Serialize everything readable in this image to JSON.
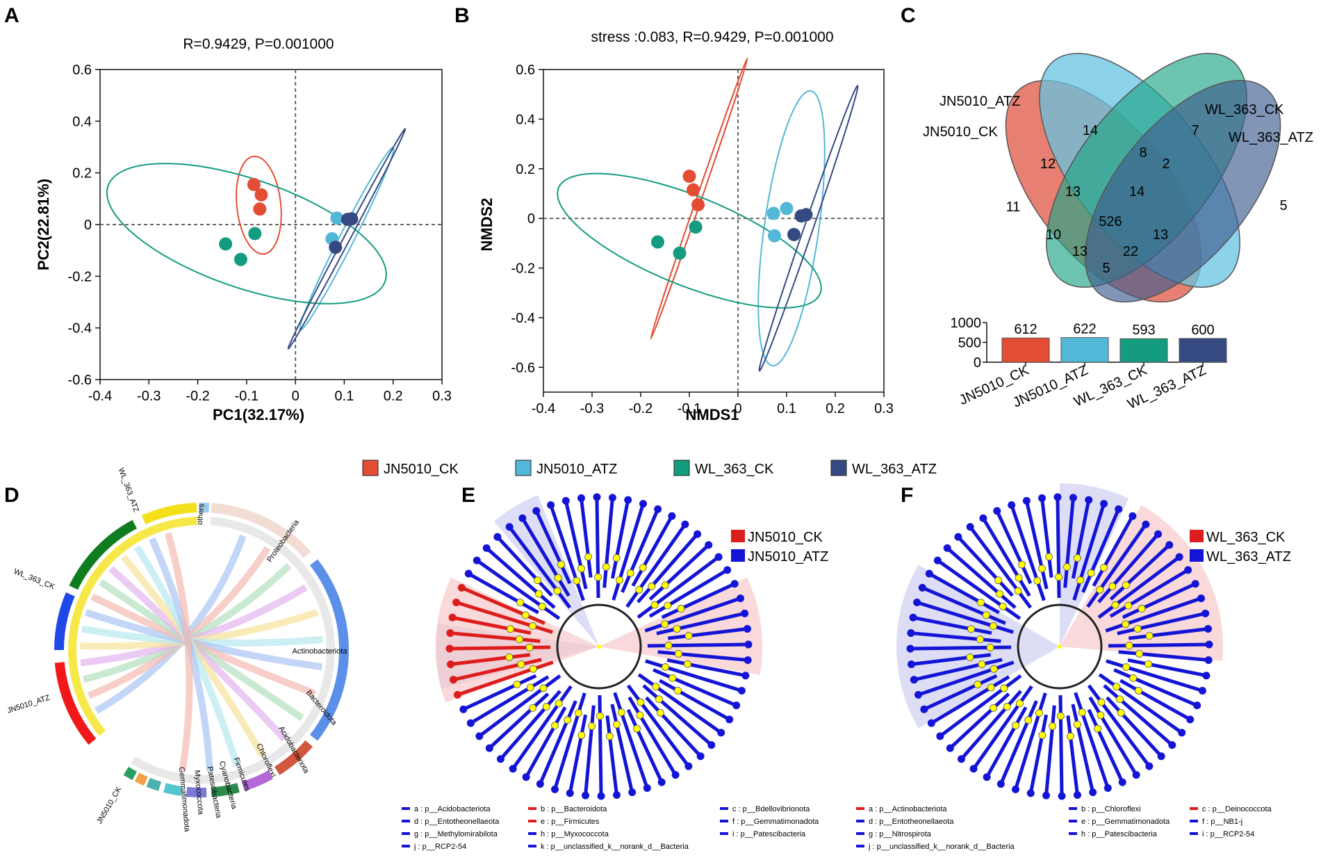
{
  "panels": {
    "A": "A",
    "B": "B",
    "C": "C",
    "D": "D",
    "E": "E",
    "F": "F"
  },
  "colors": {
    "JN5010_CK": "#e34d34",
    "JN5010_ATZ": "#53b7d8",
    "WL_363_CK": "#139c80",
    "WL_363_ATZ": "#354a82",
    "lefse_red": "#dd1c1c",
    "lefse_blue": "#1414d6",
    "node_yellow": "#ffff00"
  },
  "legend": {
    "items": [
      {
        "label": "JN5010_CK",
        "color": "#e34d34"
      },
      {
        "label": "JN5010_ATZ",
        "color": "#53b7d8"
      },
      {
        "label": "WL_363_CK",
        "color": "#139c80"
      },
      {
        "label": "WL_363_ATZ",
        "color": "#354a82"
      }
    ]
  },
  "chart_data": [
    {
      "panel": "A",
      "type": "scatter",
      "title": "R=0.9429, P=0.001000",
      "xlabel": "PC1(32.17%)",
      "ylabel": "PC2(22.81%)",
      "xlim": [
        -0.4,
        0.3
      ],
      "ylim": [
        -0.6,
        0.6
      ],
      "xticks": [
        "-0.4",
        "-0.3",
        "-0.2",
        "-0.1",
        "0",
        "0.1",
        "0.2",
        "0.3"
      ],
      "yticks": [
        "0.6",
        "0.4",
        "0.2",
        "0",
        "-0.2",
        "-0.4",
        "-0.6"
      ],
      "xtick_values": [
        -0.4,
        -0.3,
        -0.2,
        -0.1,
        0,
        0.1,
        0.2,
        0.3
      ],
      "ytick_values": [
        0.6,
        0.4,
        0.2,
        0,
        -0.2,
        -0.4,
        -0.6
      ],
      "series": [
        {
          "name": "JN5010_CK",
          "points": [
            [
              -0.085,
              0.155
            ],
            [
              -0.07,
              0.115
            ],
            [
              -0.073,
              0.06
            ]
          ],
          "ellipse": {
            "cx": -0.075,
            "cy": 0.075,
            "rx": 0.045,
            "ry": 0.19,
            "angle": -6
          }
        },
        {
          "name": "JN5010_ATZ",
          "points": [
            [
              0.085,
              0.025
            ],
            [
              0.075,
              -0.055
            ]
          ],
          "ellipse": {
            "cx": 0.105,
            "cy": -0.055,
            "rx": 0.21,
            "ry": 0.028,
            "angle": -63
          }
        },
        {
          "name": "WL_363_CK",
          "points": [
            [
              -0.143,
              -0.075
            ],
            [
              -0.112,
              -0.135
            ],
            [
              -0.083,
              -0.035
            ]
          ],
          "ellipse": {
            "cx": -0.1,
            "cy": -0.035,
            "rx": 0.3,
            "ry": 0.21,
            "angle": 19
          }
        },
        {
          "name": "WL_363_ATZ",
          "points": [
            [
              0.107,
              0.02
            ],
            [
              0.115,
              0.022
            ],
            [
              0.082,
              -0.088
            ]
          ],
          "ellipse": {
            "cx": 0.105,
            "cy": -0.055,
            "rx": 0.255,
            "ry": 0.012,
            "angle": -62
          }
        }
      ]
    },
    {
      "panel": "B",
      "type": "scatter",
      "title": "stress :0.083, R=0.9429, P=0.001000",
      "xlabel": "NMDS1",
      "ylabel": "NMDS2",
      "xlim": [
        -0.4,
        0.3
      ],
      "ylim": [
        -0.7,
        0.6
      ],
      "xticks": [
        "-0.4",
        "-0.3",
        "-0.2",
        "-0.1",
        "0",
        "0.1",
        "0.2",
        "0.3"
      ],
      "yticks": [
        "0.6",
        "0.4",
        "0.2",
        "0",
        "-0.2",
        "-0.4",
        "-0.6"
      ],
      "xtick_values": [
        -0.4,
        -0.3,
        -0.2,
        -0.1,
        0,
        0.1,
        0.2,
        0.3
      ],
      "ytick_values": [
        0.6,
        0.4,
        0.2,
        0,
        -0.2,
        -0.4,
        -0.6
      ],
      "series": [
        {
          "name": "JN5010_CK",
          "points": [
            [
              -0.1,
              0.17
            ],
            [
              -0.092,
              0.115
            ],
            [
              -0.082,
              0.055
            ]
          ],
          "ellipse": {
            "cx": -0.08,
            "cy": 0.08,
            "rx": 0.305,
            "ry": 0.01,
            "angle": -71
          }
        },
        {
          "name": "JN5010_ATZ",
          "points": [
            [
              0.073,
              0.02
            ],
            [
              0.1,
              0.04
            ],
            [
              0.075,
              -0.07
            ]
          ],
          "ellipse": {
            "cx": 0.11,
            "cy": -0.04,
            "rx": 0.285,
            "ry": 0.11,
            "angle": -82
          }
        },
        {
          "name": "WL_363_CK",
          "points": [
            [
              -0.165,
              -0.095
            ],
            [
              -0.12,
              -0.14
            ],
            [
              -0.087,
              -0.035
            ]
          ],
          "ellipse": {
            "cx": -0.1,
            "cy": -0.09,
            "rx": 0.29,
            "ry": 0.18,
            "angle": 22
          }
        },
        {
          "name": "WL_363_ATZ",
          "points": [
            [
              0.13,
              0.01
            ],
            [
              0.14,
              0.015
            ],
            [
              0.115,
              -0.065
            ]
          ],
          "ellipse": {
            "cx": 0.145,
            "cy": -0.04,
            "rx": 0.31,
            "ry": 0.018,
            "angle": -71
          }
        }
      ]
    },
    {
      "panel": "C",
      "type": "bar",
      "title": "",
      "categories": [
        "JN5010_CK",
        "JN5010_ATZ",
        "WL_363_CK",
        "WL_363_ATZ"
      ],
      "values": [
        612,
        622,
        593,
        600
      ],
      "ylim": [
        0,
        1000
      ],
      "yticks": [
        "1000",
        "500",
        "0"
      ],
      "ytick_values": [
        1000,
        500,
        0
      ],
      "venn": {
        "sets": [
          "JN5010_CK",
          "JN5010_ATZ",
          "WL_363_CK",
          "WL_363_ATZ"
        ],
        "region_counts": [
          "11",
          "14",
          "7",
          "5",
          "12",
          "8",
          "2",
          "13",
          "14",
          "526",
          "10",
          "13",
          "22",
          "13",
          "5"
        ]
      }
    },
    {
      "panel": "D",
      "type": "chord",
      "samples": [
        "WL_363_ATZ",
        "WL_363_CK",
        "JN5010_ATZ",
        "JN5010_CK"
      ],
      "phyla": [
        "Proteobacteria",
        "Actinobacteriota",
        "Bacteroidota",
        "Acidobacteriota",
        "Chloroflexi",
        "Firmicutes",
        "Cyanobacteria",
        "Patescibacteria",
        "Myxococcota",
        "Gemmatimonadota",
        "others"
      ]
    },
    {
      "panel": "E",
      "type": "cladogram",
      "groups": [
        "JN5010_CK",
        "JN5010_ATZ"
      ],
      "key": [
        {
          "text": "a : p__Acidobacteriota",
          "group": "JN5010_ATZ"
        },
        {
          "text": "d : p__Entotheonellaeota",
          "group": "JN5010_ATZ"
        },
        {
          "text": "g : p__Methylomirabilota",
          "group": "JN5010_ATZ"
        },
        {
          "text": "j : p__RCP2-54",
          "group": "JN5010_ATZ"
        },
        {
          "text": "b : p__Bacteroidota",
          "group": "JN5010_CK"
        },
        {
          "text": "e : p__Firmicutes",
          "group": "JN5010_CK"
        },
        {
          "text": "h : p__Myxococcota",
          "group": "JN5010_ATZ"
        },
        {
          "text": "k : p__unclassified_k__norank_d__Bacteria",
          "group": "JN5010_ATZ"
        },
        {
          "text": "c : p__Bdellovibrionota",
          "group": "JN5010_ATZ"
        },
        {
          "text": "f : p__Gemmatimonadota",
          "group": "JN5010_ATZ"
        },
        {
          "text": "i : p__Patescibacteria",
          "group": "JN5010_ATZ"
        }
      ]
    },
    {
      "panel": "F",
      "type": "cladogram",
      "groups": [
        "WL_363_CK",
        "WL_363_ATZ"
      ],
      "key": [
        {
          "text": "a : p__Actinobacteriota",
          "group": "WL_363_CK"
        },
        {
          "text": "d : p__Entotheonellaeota",
          "group": "WL_363_ATZ"
        },
        {
          "text": "g : p__Nitrospirota",
          "group": "WL_363_ATZ"
        },
        {
          "text": "j : p__unclassified_k__norank_d__Bacteria",
          "group": "WL_363_ATZ"
        },
        {
          "text": "b : p__Chloroflexi",
          "group": "WL_363_ATZ"
        },
        {
          "text": "e : p__Gemmatimonadota",
          "group": "WL_363_ATZ"
        },
        {
          "text": "h : p__Patescibacteria",
          "group": "WL_363_ATZ"
        },
        {
          "text": "c : p__Deinococcota",
          "group": "WL_363_CK"
        },
        {
          "text": "f : p__NB1-j",
          "group": "WL_363_ATZ"
        },
        {
          "text": "i : p__RCP2-54",
          "group": "WL_363_ATZ"
        }
      ]
    }
  ]
}
